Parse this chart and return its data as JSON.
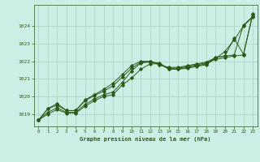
{
  "background_color": "#cceee4",
  "line_color": "#2d5a1b",
  "grid_color": "#aad4c0",
  "xlabel": "Graphe pression niveau de la mer (hPa)",
  "xlabel_color": "#2d5a1b",
  "ylim": [
    1018.3,
    1025.2
  ],
  "xlim": [
    -0.5,
    23.5
  ],
  "yticks": [
    1019,
    1020,
    1021,
    1022,
    1023,
    1024
  ],
  "xticks": [
    0,
    1,
    2,
    3,
    4,
    5,
    6,
    7,
    8,
    9,
    10,
    11,
    12,
    13,
    14,
    15,
    16,
    17,
    18,
    19,
    20,
    21,
    22,
    23
  ],
  "series": [
    [
      1018.65,
      1019.0,
      1019.25,
      1019.05,
      1019.05,
      1019.45,
      1019.75,
      1020.0,
      1020.1,
      1020.65,
      1021.05,
      1021.55,
      1021.85,
      1021.85,
      1021.55,
      1021.55,
      1021.6,
      1021.7,
      1021.8,
      1022.15,
      1022.55,
      1023.2,
      1024.0,
      1024.5
    ],
    [
      1018.65,
      1019.1,
      1019.35,
      1019.1,
      1019.1,
      1019.55,
      1019.85,
      1020.1,
      1020.25,
      1020.8,
      1021.45,
      1021.9,
      1021.95,
      1021.9,
      1021.55,
      1021.55,
      1021.65,
      1021.75,
      1021.85,
      1022.2,
      1022.3,
      1022.35,
      1024.05,
      1024.55
    ],
    [
      1018.65,
      1019.3,
      1019.5,
      1019.2,
      1019.2,
      1019.75,
      1020.05,
      1020.3,
      1020.6,
      1021.1,
      1021.6,
      1021.95,
      1022.0,
      1021.8,
      1021.6,
      1021.6,
      1021.7,
      1021.8,
      1021.9,
      1022.1,
      1022.2,
      1022.3,
      1022.35,
      1024.65
    ],
    [
      1018.65,
      1019.3,
      1019.6,
      1019.2,
      1019.2,
      1019.8,
      1020.1,
      1020.4,
      1020.75,
      1021.25,
      1021.75,
      1022.0,
      1022.0,
      1021.8,
      1021.65,
      1021.65,
      1021.75,
      1021.85,
      1021.95,
      1022.2,
      1022.3,
      1023.3,
      1022.4,
      1024.7
    ]
  ]
}
